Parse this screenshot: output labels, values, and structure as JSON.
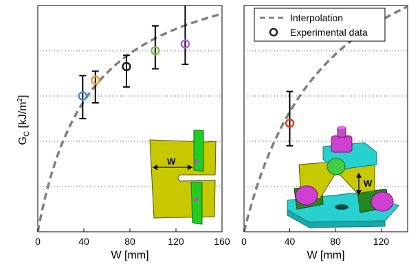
{
  "chart_data": [
    {
      "type": "scatter",
      "panel": "left",
      "xlabel": "W [mm]",
      "ylabel": "G",
      "ylabel_sub": "C",
      "ylabel_units": "[kJ/m",
      "ylabel_units_sup": "2",
      "ylabel_units_close": "]",
      "xlim": [
        0,
        160
      ],
      "ylim": [
        0,
        1
      ],
      "x_ticks": [
        0,
        40,
        80,
        120,
        160
      ],
      "x_tick_labels": [
        "0",
        "40",
        "80",
        "120",
        "160"
      ],
      "y_gridlines": [
        0.2,
        0.4,
        0.6,
        0.8
      ],
      "grid": "y-dotted",
      "curve": {
        "name": "Interpolation",
        "style": "dashed",
        "color": "#808080",
        "a": 1.24,
        "b": 46
      },
      "points": [
        {
          "x": 39,
          "y": 0.6,
          "err_low": 0.5,
          "err_high": 0.69,
          "color": "#3a8fd8"
        },
        {
          "x": 50,
          "y": 0.67,
          "err_low": 0.57,
          "err_high": 0.71,
          "color": "#f0a020"
        },
        {
          "x": 77,
          "y": 0.73,
          "err_low": 0.64,
          "err_high": 0.78,
          "color": "#222222"
        },
        {
          "x": 102,
          "y": 0.8,
          "err_low": 0.72,
          "err_high": 0.91,
          "color": "#7cc23a"
        },
        {
          "x": 128,
          "y": 0.83,
          "err_low": 0.74,
          "err_high": 1.04,
          "color": "#b05fe0"
        }
      ],
      "inset": {
        "kind": "specimen-drawing",
        "label": "W"
      }
    },
    {
      "type": "scatter",
      "panel": "right",
      "xlabel": "W [mm]",
      "xlim": [
        0,
        160
      ],
      "ylim": [
        0,
        1
      ],
      "x_ticks": [
        0,
        40,
        80,
        120,
        160
      ],
      "x_tick_labels": [
        "0",
        "40",
        "80",
        "120",
        "160"
      ],
      "y_gridlines": [
        0.2,
        0.4,
        0.6,
        0.8
      ],
      "grid": "y-dotted",
      "curve": {
        "name": "Interpolation",
        "style": "dashed",
        "color": "#808080",
        "a": 1.51,
        "b": 74
      },
      "points": [
        {
          "x": 40,
          "y": 0.48,
          "err_low": 0.38,
          "err_high": 0.62,
          "color": "#d9401a"
        }
      ],
      "legend": {
        "position": "top-right",
        "entries": [
          {
            "label": "Interpolation",
            "marker": "dashed-line"
          },
          {
            "label": "Experimental data",
            "marker": "circle"
          }
        ]
      },
      "inset": {
        "kind": "test-fixture-drawing",
        "label": "W"
      }
    }
  ],
  "colors": {
    "specimen_yellow": "#c8c800",
    "tab_green": "#22cc22",
    "fixture_cyan": "#28d0d0",
    "fixture_magenta": "#d040d0",
    "fixture_green": "#228822",
    "grid": "#555555"
  }
}
